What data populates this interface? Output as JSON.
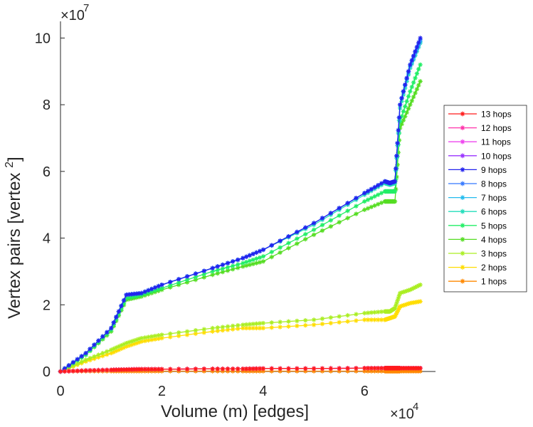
{
  "chart_data": {
    "type": "line",
    "title": "",
    "xlabel": "Volume (m) [edges]",
    "ylabel": "Vertex pairs [vertex ",
    "ylabel_superscript": "2",
    "ylabel_suffix": "]",
    "x_exponent_label": "×10",
    "x_exponent": "4",
    "y_exponent_label": "×10",
    "y_exponent": "7",
    "xlim": [
      0,
      7.4
    ],
    "ylim": [
      0,
      10.5
    ],
    "xticks": [
      0,
      2,
      4,
      6
    ],
    "xtick_labels": [
      "0",
      "2",
      "4",
      "6"
    ],
    "yticks": [
      0,
      2,
      4,
      6,
      8,
      10
    ],
    "ytick_labels": [
      "0",
      "2",
      "4",
      "6",
      "8",
      "10"
    ],
    "x_units_note": "x values in units of 10^4 edges",
    "y_units_note": "y values in units of 10^7 vertex pairs",
    "legend_position": "right",
    "x": [
      0,
      0.5,
      1.0,
      1.3,
      1.6,
      2.0,
      3.0,
      3.6,
      4.0,
      5.0,
      6.0,
      6.4,
      6.5,
      6.6,
      6.7,
      6.9,
      7.1
    ],
    "series": [
      {
        "name": "13 hops",
        "color": "#ff1a1a",
        "values": [
          0,
          0.03,
          0.05,
          0.06,
          0.07,
          0.07,
          0.08,
          0.08,
          0.09,
          0.09,
          0.1,
          0.1,
          0.1,
          0.1,
          0.1,
          0.1,
          0.1
        ]
      },
      {
        "name": "12 hops",
        "color": "#ff33aa",
        "values": [
          0,
          0.03,
          0.05,
          0.06,
          0.07,
          0.07,
          0.08,
          0.08,
          0.09,
          0.09,
          0.1,
          0.1,
          0.1,
          0.1,
          0.1,
          0.1,
          0.1
        ]
      },
      {
        "name": "11 hops",
        "color": "#ee44ee",
        "values": [
          0,
          0.03,
          0.05,
          0.06,
          0.07,
          0.07,
          0.08,
          0.08,
          0.09,
          0.09,
          0.1,
          0.1,
          0.1,
          0.1,
          0.1,
          0.1,
          0.1
        ]
      },
      {
        "name": "10 hops",
        "color": "#9933ff",
        "values": [
          0,
          0.03,
          0.05,
          0.06,
          0.07,
          0.07,
          0.08,
          0.08,
          0.09,
          0.09,
          0.1,
          0.1,
          0.1,
          0.1,
          0.1,
          0.1,
          0.1
        ]
      },
      {
        "name": "9 hops",
        "color": "#2222ee",
        "values": [
          0,
          0.55,
          1.3,
          2.3,
          2.35,
          2.6,
          3.1,
          3.4,
          3.65,
          4.45,
          5.35,
          5.7,
          5.65,
          5.7,
          8.0,
          9.2,
          10.0
        ]
      },
      {
        "name": "8 hops",
        "color": "#3377ff",
        "values": [
          0,
          0.55,
          1.3,
          2.3,
          2.35,
          2.6,
          3.1,
          3.4,
          3.65,
          4.45,
          5.35,
          5.7,
          5.65,
          5.7,
          8.0,
          9.2,
          9.95
        ]
      },
      {
        "name": "7 hops",
        "color": "#22bbee",
        "values": [
          0,
          0.55,
          1.3,
          2.3,
          2.35,
          2.6,
          3.1,
          3.4,
          3.65,
          4.45,
          5.35,
          5.7,
          5.65,
          5.7,
          8.0,
          9.15,
          9.9
        ]
      },
      {
        "name": "6 hops",
        "color": "#22ddbb",
        "values": [
          0,
          0.55,
          1.3,
          2.3,
          2.35,
          2.6,
          3.1,
          3.4,
          3.65,
          4.4,
          5.3,
          5.65,
          5.6,
          5.65,
          7.9,
          9.1,
          9.85
        ]
      },
      {
        "name": "5 hops",
        "color": "#22ee66",
        "values": [
          0,
          0.5,
          1.25,
          2.2,
          2.3,
          2.5,
          3.0,
          3.25,
          3.45,
          4.25,
          5.1,
          5.4,
          5.4,
          5.4,
          7.5,
          8.4,
          9.2
        ]
      },
      {
        "name": "4 hops",
        "color": "#55dd22",
        "values": [
          0,
          0.5,
          1.2,
          2.15,
          2.25,
          2.45,
          2.9,
          3.15,
          3.3,
          4.1,
          4.85,
          5.1,
          5.1,
          5.1,
          7.3,
          8.0,
          8.7
        ]
      },
      {
        "name": "3 hops",
        "color": "#aaee22",
        "values": [
          0,
          0.35,
          0.65,
          0.85,
          1.0,
          1.1,
          1.3,
          1.4,
          1.45,
          1.55,
          1.75,
          1.8,
          1.8,
          1.9,
          2.35,
          2.45,
          2.6
        ]
      },
      {
        "name": "2 hops",
        "color": "#ffdd00",
        "values": [
          0,
          0.3,
          0.55,
          0.75,
          0.9,
          1.0,
          1.2,
          1.3,
          1.3,
          1.4,
          1.55,
          1.55,
          1.6,
          1.65,
          1.95,
          2.05,
          2.1
        ]
      },
      {
        "name": "1 hops",
        "color": "#ff8800",
        "values": [
          0,
          0.01,
          0.01,
          0.01,
          0.01,
          0.01,
          0.01,
          0.01,
          0.01,
          0.01,
          0.01,
          0.01,
          0.01,
          0.01,
          0.01,
          0.01,
          0.01
        ]
      }
    ]
  }
}
